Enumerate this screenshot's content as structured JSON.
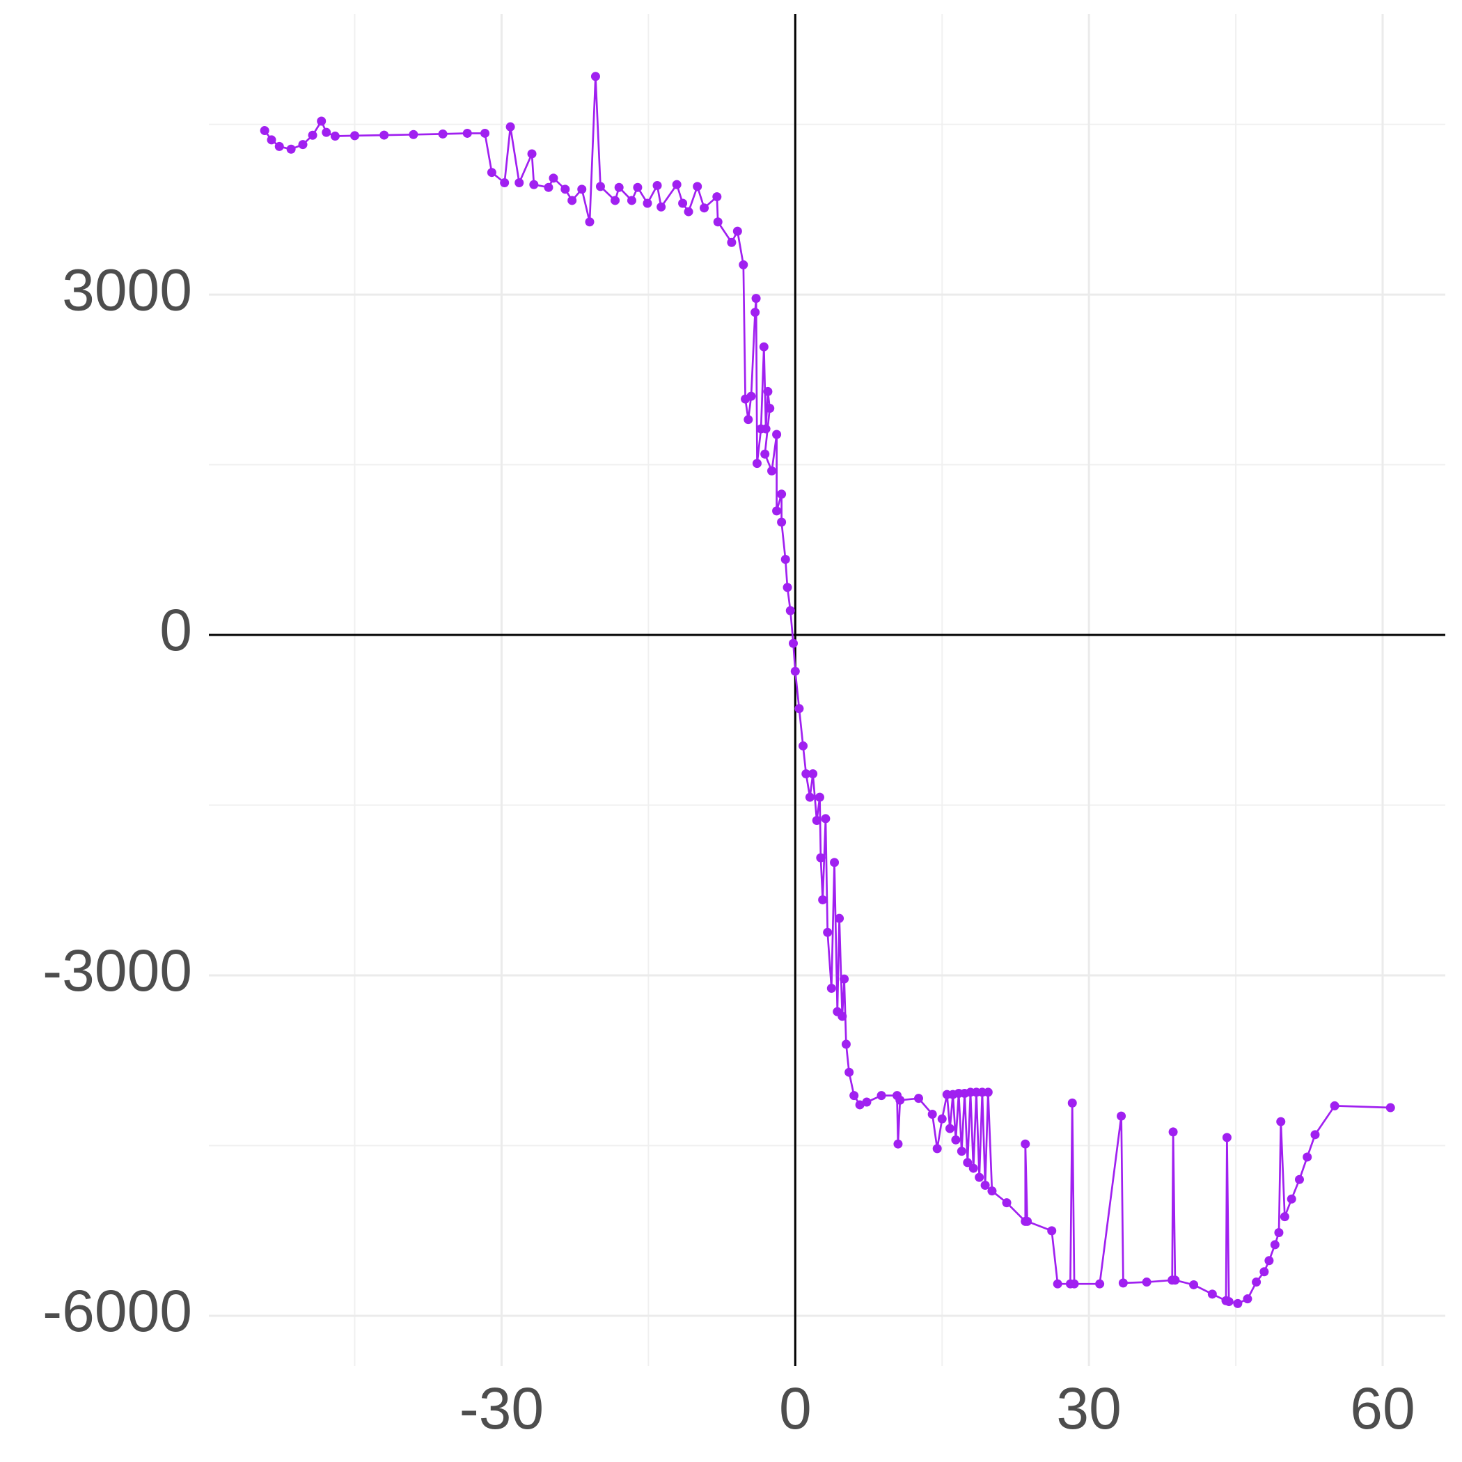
{
  "chart_data": {
    "type": "line",
    "x": [
      -54.2,
      -53.5,
      -52.7,
      -51.5,
      -50.3,
      -49.3,
      -48.4,
      -47.9,
      -47,
      -45,
      -42,
      -39,
      -36,
      -33.5,
      -31.7,
      -31,
      -29.7,
      -29.1,
      -28.2,
      -26.9,
      -26.7,
      -25.2,
      -24.7,
      -23.5,
      -22.8,
      -21.8,
      -21,
      -20.4,
      -19.9,
      -18.4,
      -18,
      -16.7,
      -16.1,
      -15.1,
      -14.1,
      -13.7,
      -12.1,
      -11.5,
      -10.9,
      -10,
      -9.3,
      -8,
      -7.9,
      -6.5,
      -5.9,
      -5.3,
      -5.1,
      -4.8,
      -4.5,
      -4.1,
      -4,
      -3.9,
      -3.5,
      -3.2,
      -3,
      -2.8,
      -2.6,
      -3.1,
      -2.4,
      -1.9,
      -1.9,
      -1.4,
      -1.4,
      -1,
      -0.8,
      -0.5,
      -0.2,
      0,
      0.4,
      0.8,
      1.1,
      1.5,
      1.8,
      2.2,
      2.5,
      2.6,
      2.8,
      3.1,
      3.3,
      3.7,
      4,
      4.3,
      4.5,
      4.8,
      5,
      5.2,
      5.5,
      6,
      6.6,
      7.3,
      8.8,
      10.4,
      10.5,
      10.7,
      12.6,
      14,
      14.5,
      15,
      15.5,
      15.8,
      16.1,
      16.4,
      16.7,
      17,
      17.3,
      17.6,
      17.9,
      18.2,
      18.5,
      18.8,
      19.1,
      19.4,
      19.7,
      20.1,
      21.6,
      23.5,
      23.5,
      23.7,
      26.2,
      26.8,
      28.1,
      28.3,
      28.5,
      31.1,
      33.3,
      33.5,
      35.9,
      38.5,
      38.6,
      38.8,
      40.7,
      42.6,
      44,
      44.1,
      44.3,
      45.2,
      46.2,
      47.1,
      47.9,
      48.4,
      49,
      49.4,
      49.6,
      50,
      50.7,
      51.5,
      52.3,
      53.1,
      55.1,
      60.8
    ],
    "series": [
      {
        "color": "#a020f0",
        "values": [
          4445,
          4363,
          4305,
          4281,
          4322,
          4404,
          4528,
          4429,
          4396,
          4400,
          4405,
          4410,
          4415,
          4421,
          4421,
          4076,
          3985,
          4478,
          3985,
          4240,
          3969,
          3944,
          4026,
          3928,
          3829,
          3928,
          3640,
          4922,
          3952,
          3829,
          3944,
          3829,
          3944,
          3804,
          3961,
          3772,
          3969,
          3804,
          3730,
          3952,
          3763,
          3862,
          3640,
          3459,
          3558,
          3262,
          2079,
          1898,
          2104,
          2843,
          2966,
          1512,
          1816,
          2539,
          1816,
          2145,
          1997,
          1594,
          1446,
          1767,
          1093,
          1241,
          994,
          666,
          419,
          214,
          -74,
          -320,
          -649,
          -978,
          -1224,
          -1430,
          -1224,
          -1635,
          -1430,
          -1964,
          -2334,
          -1619,
          -2621,
          -3114,
          -2005,
          -3320,
          -2498,
          -3361,
          -3032,
          -3607,
          -3854,
          -4059,
          -4141,
          -4117,
          -4059,
          -4059,
          -4486,
          -4100,
          -4084,
          -4224,
          -4527,
          -4265,
          -4050,
          -4350,
          -4050,
          -4450,
          -4040,
          -4550,
          -4040,
          -4650,
          -4030,
          -4700,
          -4030,
          -4780,
          -4030,
          -4850,
          -4030,
          -4900,
          -5004,
          -5168,
          -4486,
          -5168,
          -5251,
          -5719,
          -5719,
          -4125,
          -5719,
          -5719,
          -4240,
          -5711,
          -5703,
          -5686,
          -4380,
          -5686,
          -5727,
          -5809,
          -5867,
          -4429,
          -5875,
          -5892,
          -5851,
          -5703,
          -5612,
          -5514,
          -5374,
          -5267,
          -4289,
          -5127,
          -4971,
          -4799,
          -4601,
          -4404,
          -4150,
          -4166
        ]
      }
    ],
    "markers": true,
    "xlim": [
      -59.9,
      66.4
    ],
    "ylim": [
      -6442,
      5473
    ],
    "xticks": [
      -30,
      0,
      30,
      60
    ],
    "yticks": [
      -6000,
      -3000,
      0,
      3000
    ],
    "xminor": [
      -45,
      -15,
      15,
      45
    ],
    "yminor": [
      -4500,
      -1500,
      1500,
      4500
    ],
    "grid": true,
    "hline": 0,
    "vline": 0
  }
}
